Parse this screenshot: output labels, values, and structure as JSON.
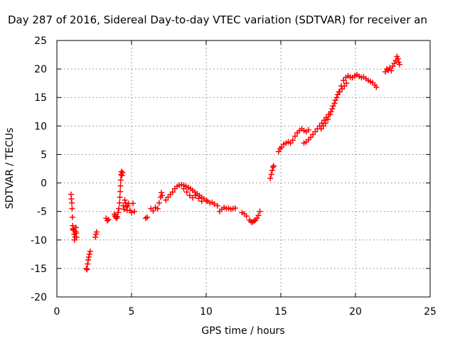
{
  "chart_data": {
    "type": "scatter",
    "title": "Day 287 of 2016, Sidereal Day-to-day VTEC variation (SDTVAR) for receiver an",
    "xlabel": "GPS time / hours",
    "ylabel": "SDTVAR / TECUs",
    "xlim": [
      0,
      25
    ],
    "ylim": [
      -20,
      25
    ],
    "xticks": [
      0,
      5,
      10,
      15,
      20,
      25
    ],
    "yticks": [
      -20,
      -15,
      -10,
      -5,
      0,
      5,
      10,
      15,
      20,
      25
    ],
    "xtick_labels": [
      "0",
      "5",
      "10",
      "15",
      "20",
      "25"
    ],
    "ytick_labels": [
      "-20",
      "-15",
      "-10",
      "-5",
      "0",
      "5",
      "10",
      "15",
      "20",
      "25"
    ],
    "grid": true,
    "marker": "plus",
    "color": "#ff0000",
    "series": [
      {
        "name": "SDTVAR",
        "points": [
          [
            0.95,
            -2.0
          ],
          [
            0.97,
            -2.8
          ],
          [
            1.0,
            -3.5
          ],
          [
            1.02,
            -4.5
          ],
          [
            1.04,
            -6.0
          ],
          [
            1.06,
            -7.5
          ],
          [
            1.08,
            -8.2
          ],
          [
            1.1,
            -8.0
          ],
          [
            1.13,
            -8.3
          ],
          [
            1.16,
            -9.0
          ],
          [
            1.18,
            -10.0
          ],
          [
            1.22,
            -9.5
          ],
          [
            1.25,
            -8.5
          ],
          [
            1.28,
            -7.8
          ],
          [
            1.3,
            -8.8
          ],
          [
            1.32,
            -9.5
          ],
          [
            1.98,
            -15.0
          ],
          [
            2.02,
            -15.2
          ],
          [
            2.06,
            -14.2
          ],
          [
            2.1,
            -13.5
          ],
          [
            2.14,
            -13.0
          ],
          [
            2.18,
            -12.5
          ],
          [
            2.23,
            -12.0
          ],
          [
            2.58,
            -9.5
          ],
          [
            2.62,
            -9.0
          ],
          [
            2.66,
            -8.6
          ],
          [
            3.3,
            -6.2
          ],
          [
            3.38,
            -6.6
          ],
          [
            3.45,
            -6.4
          ],
          [
            3.85,
            -5.5
          ],
          [
            3.9,
            -5.8
          ],
          [
            3.95,
            -6.0
          ],
          [
            4.0,
            -6.2
          ],
          [
            4.05,
            -5.9
          ],
          [
            4.1,
            -5.2
          ],
          [
            4.15,
            -4.5
          ],
          [
            4.2,
            -3.5
          ],
          [
            4.22,
            -2.5
          ],
          [
            4.24,
            -1.5
          ],
          [
            4.26,
            -0.5
          ],
          [
            4.28,
            0.5
          ],
          [
            4.3,
            1.5
          ],
          [
            4.32,
            2.0
          ],
          [
            4.36,
            1.3
          ],
          [
            4.4,
            1.8
          ],
          [
            4.45,
            -4.0
          ],
          [
            4.5,
            -4.6
          ],
          [
            4.55,
            -3.0
          ],
          [
            4.6,
            -3.5
          ],
          [
            4.65,
            -4.2
          ],
          [
            4.7,
            -4.8
          ],
          [
            4.75,
            -4.0
          ],
          [
            4.8,
            -3.6
          ],
          [
            4.9,
            -4.8
          ],
          [
            5.0,
            -5.2
          ],
          [
            5.1,
            -3.6
          ],
          [
            5.2,
            -5.0
          ],
          [
            5.95,
            -6.2
          ],
          [
            6.05,
            -6.0
          ],
          [
            6.3,
            -4.5
          ],
          [
            6.45,
            -4.9
          ],
          [
            6.6,
            -4.3
          ],
          [
            6.75,
            -4.5
          ],
          [
            6.85,
            -3.5
          ],
          [
            6.95,
            -2.5
          ],
          [
            7.0,
            -1.7
          ],
          [
            7.05,
            -2.2
          ],
          [
            7.3,
            -3.0
          ],
          [
            7.45,
            -2.5
          ],
          [
            7.6,
            -2.0
          ],
          [
            7.75,
            -1.6
          ],
          [
            7.9,
            -1.0
          ],
          [
            8.05,
            -0.6
          ],
          [
            8.2,
            -0.4
          ],
          [
            8.35,
            -0.3
          ],
          [
            8.5,
            -0.4
          ],
          [
            8.65,
            -0.6
          ],
          [
            8.8,
            -0.8
          ],
          [
            8.95,
            -1.0
          ],
          [
            9.1,
            -1.3
          ],
          [
            9.25,
            -1.6
          ],
          [
            9.4,
            -1.9
          ],
          [
            9.55,
            -2.2
          ],
          [
            9.7,
            -2.5
          ],
          [
            9.85,
            -2.8
          ],
          [
            10.0,
            -3.1
          ],
          [
            8.5,
            -1.0
          ],
          [
            8.7,
            -1.6
          ],
          [
            8.9,
            -2.2
          ],
          [
            9.1,
            -2.6
          ],
          [
            9.3,
            -2.2
          ],
          [
            9.5,
            -2.7
          ],
          [
            9.7,
            -3.2
          ],
          [
            10.1,
            -3.2
          ],
          [
            10.25,
            -3.5
          ],
          [
            10.4,
            -3.4
          ],
          [
            10.55,
            -3.7
          ],
          [
            10.75,
            -4.0
          ],
          [
            10.9,
            -5.0
          ],
          [
            11.05,
            -4.6
          ],
          [
            11.2,
            -4.3
          ],
          [
            11.35,
            -4.5
          ],
          [
            11.5,
            -4.4
          ],
          [
            11.65,
            -4.6
          ],
          [
            11.8,
            -4.5
          ],
          [
            11.95,
            -4.4
          ],
          [
            12.4,
            -5.2
          ],
          [
            12.55,
            -5.4
          ],
          [
            12.7,
            -5.8
          ],
          [
            12.9,
            -6.5
          ],
          [
            13.0,
            -6.8
          ],
          [
            13.1,
            -6.9
          ],
          [
            13.2,
            -6.7
          ],
          [
            13.3,
            -6.5
          ],
          [
            13.4,
            -6.2
          ],
          [
            13.5,
            -5.7
          ],
          [
            13.6,
            -5.0
          ],
          [
            14.3,
            0.8
          ],
          [
            14.36,
            1.5
          ],
          [
            14.42,
            2.2
          ],
          [
            14.48,
            2.8
          ],
          [
            14.52,
            3.0
          ],
          [
            14.85,
            5.5
          ],
          [
            14.95,
            6.0
          ],
          [
            15.05,
            6.3
          ],
          [
            15.2,
            6.8
          ],
          [
            15.35,
            7.0
          ],
          [
            15.5,
            7.2
          ],
          [
            15.65,
            7.0
          ],
          [
            15.8,
            7.5
          ],
          [
            15.95,
            8.2
          ],
          [
            16.1,
            8.8
          ],
          [
            16.25,
            9.2
          ],
          [
            16.4,
            9.5
          ],
          [
            16.55,
            9.2
          ],
          [
            16.7,
            9.0
          ],
          [
            16.85,
            9.3
          ],
          [
            16.55,
            7.0
          ],
          [
            16.7,
            7.2
          ],
          [
            16.85,
            7.6
          ],
          [
            17.0,
            8.0
          ],
          [
            17.15,
            8.5
          ],
          [
            17.3,
            9.0
          ],
          [
            17.45,
            9.5
          ],
          [
            17.6,
            10.0
          ],
          [
            17.75,
            10.5
          ],
          [
            17.9,
            11.0
          ],
          [
            18.05,
            11.5
          ],
          [
            18.2,
            12.0
          ],
          [
            18.35,
            12.5
          ],
          [
            18.5,
            13.5
          ],
          [
            18.65,
            14.5
          ],
          [
            18.8,
            15.5
          ],
          [
            18.95,
            16.0
          ],
          [
            19.1,
            16.5
          ],
          [
            19.25,
            17.0
          ],
          [
            19.4,
            17.5
          ],
          [
            17.7,
            9.5
          ],
          [
            17.85,
            10.0
          ],
          [
            18.0,
            10.5
          ],
          [
            18.15,
            11.2
          ],
          [
            18.3,
            12.0
          ],
          [
            18.45,
            13.0
          ],
          [
            18.6,
            14.0
          ],
          [
            18.75,
            15.0
          ],
          [
            18.9,
            16.0
          ],
          [
            19.05,
            17.0
          ],
          [
            19.2,
            18.0
          ],
          [
            19.35,
            18.5
          ],
          [
            19.5,
            18.8
          ],
          [
            19.65,
            18.6
          ],
          [
            19.8,
            18.5
          ],
          [
            19.95,
            18.8
          ],
          [
            20.1,
            19.0
          ],
          [
            20.25,
            18.7
          ],
          [
            20.4,
            18.5
          ],
          [
            20.55,
            18.6
          ],
          [
            20.7,
            18.3
          ],
          [
            20.85,
            18.0
          ],
          [
            21.0,
            17.8
          ],
          [
            21.15,
            17.6
          ],
          [
            21.3,
            17.2
          ],
          [
            21.4,
            16.8
          ],
          [
            22.0,
            19.5
          ],
          [
            22.1,
            20.0
          ],
          [
            22.2,
            19.8
          ],
          [
            22.3,
            20.2
          ],
          [
            22.4,
            19.7
          ],
          [
            22.5,
            20.5
          ],
          [
            22.6,
            21.0
          ],
          [
            22.7,
            21.5
          ],
          [
            22.78,
            22.2
          ],
          [
            22.85,
            21.8
          ],
          [
            22.9,
            21.2
          ],
          [
            22.95,
            20.8
          ]
        ]
      }
    ]
  }
}
